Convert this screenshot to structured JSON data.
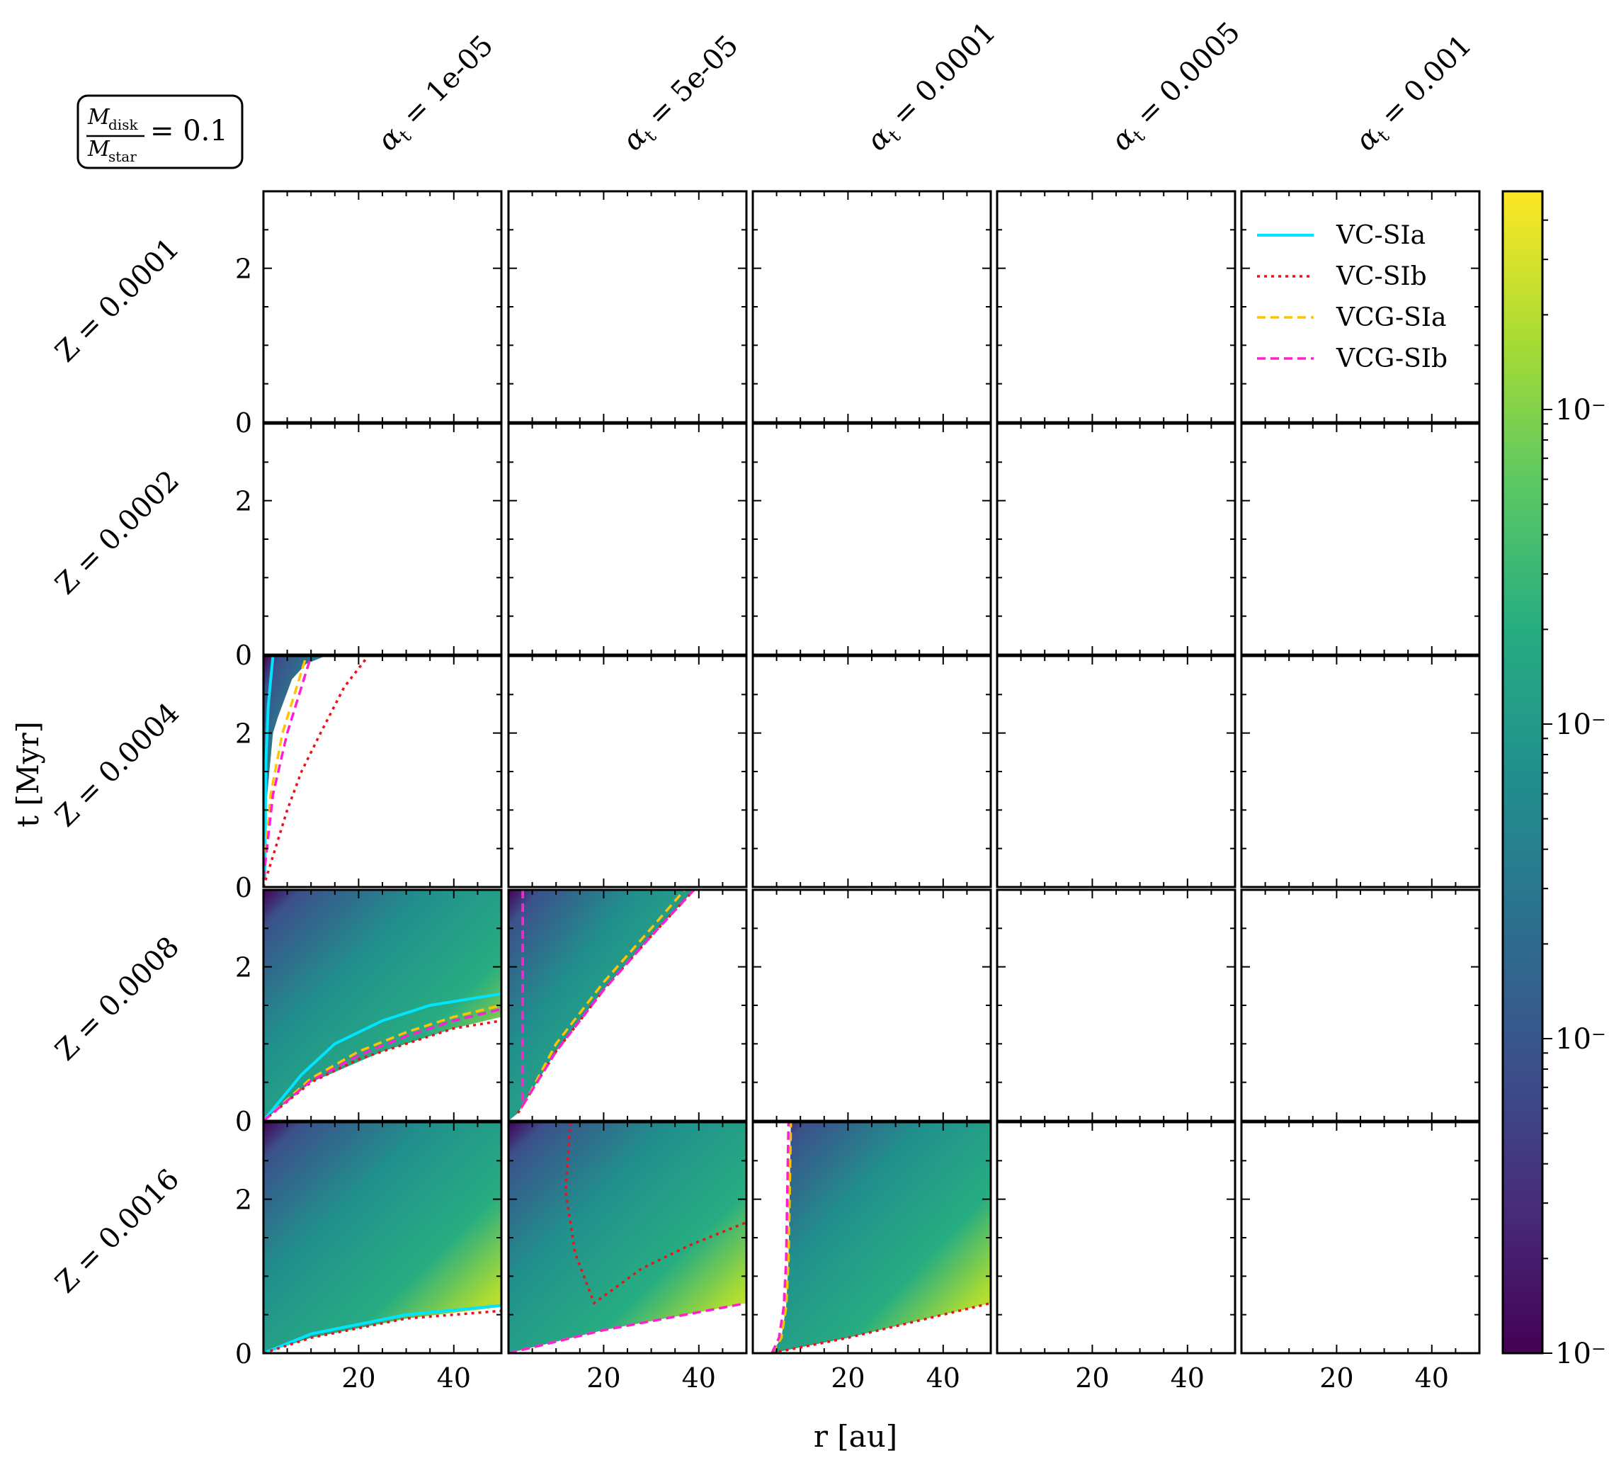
{
  "figure": {
    "title_box": {
      "numerator": "M",
      "numerator_sub": "disk",
      "denominator": "M",
      "denominator_sub": "star",
      "eq_value": "= 0.1"
    },
    "xlabel": "r [au]",
    "ylabel": "t [Myr]",
    "col_prefix": "α",
    "col_prefix_sub": "t",
    "col_values": [
      "= 1e-05",
      "= 5e-05",
      "= 0.0001",
      "= 0.0005",
      "= 0.001"
    ],
    "row_labels": [
      "Z = 0.0001",
      "Z = 0.0002",
      "Z = 0.0004",
      "Z = 0.0008",
      "Z = 0.0016"
    ],
    "xticks": [
      "20",
      "40"
    ],
    "yticks": [
      "0",
      "2"
    ],
    "colorbar_ticks": [
      "10⁻",
      "10⁻",
      "10⁻",
      "10⁻"
    ]
  },
  "legend": [
    {
      "label": "VC-SIa",
      "color": "#00e5ff",
      "style": "solid"
    },
    {
      "label": "VC-SIb",
      "color": "#e8141a",
      "style": "dotted"
    },
    {
      "label": "VCG-SIa",
      "color": "#ffc400",
      "style": "dashed"
    },
    {
      "label": "VCG-SIb",
      "color": "#ff1fd2",
      "style": "dashed"
    }
  ],
  "chart_data": {
    "type": "heatmap",
    "xlim": [
      0,
      50
    ],
    "ylim": [
      0,
      3
    ],
    "colormap": "viridis",
    "colorbar_scale": "log",
    "panels": [
      {
        "row": 2,
        "col": 0,
        "region_upper_x": [
          [
            0,
            0
          ],
          [
            0.5,
            1
          ],
          [
            2,
            2
          ],
          [
            3,
            2.2
          ],
          [
            6,
            2.7
          ],
          [
            9,
            2.9
          ],
          [
            13,
            3
          ],
          [
            22,
            3
          ]
        ],
        "region_left_x": [
          [
            0,
            0
          ],
          [
            0,
            3
          ]
        ],
        "curves": {
          "VC-SIa": [
            [
              0.3,
              0.1
            ],
            [
              0.5,
              1.6
            ],
            [
              1,
              2.35
            ],
            [
              2,
              3
            ]
          ],
          "VC-SIb": [
            [
              0,
              0
            ],
            [
              3,
              0.6
            ],
            [
              5,
              1.0
            ],
            [
              8,
              1.5
            ],
            [
              12,
              2.0
            ],
            [
              17,
              2.6
            ],
            [
              22,
              3
            ]
          ],
          "VCG-SIa": [
            [
              0,
              0.1
            ],
            [
              1.5,
              1.2
            ],
            [
              4,
              2.0
            ],
            [
              7,
              2.6
            ],
            [
              9,
              3
            ]
          ],
          "VCG-SIb": [
            [
              0,
              0.1
            ],
            [
              2,
              1.2
            ],
            [
              5,
              2.0
            ],
            [
              8,
              2.6
            ],
            [
              10,
              3
            ]
          ]
        }
      },
      {
        "row": 3,
        "col": 0,
        "region_lower_x": [
          [
            0,
            0
          ],
          [
            10,
            0.5
          ],
          [
            25,
            0.9
          ],
          [
            40,
            1.2
          ],
          [
            50,
            1.35
          ]
        ],
        "curves": {
          "VC-SIa": [
            [
              0,
              0
            ],
            [
              8,
              0.6
            ],
            [
              15,
              1.0
            ],
            [
              25,
              1.3
            ],
            [
              35,
              1.5
            ],
            [
              50,
              1.65
            ]
          ],
          "VC-SIb": [
            [
              0,
              0
            ],
            [
              10,
              0.5
            ],
            [
              20,
              0.8
            ],
            [
              30,
              1.0
            ],
            [
              40,
              1.2
            ],
            [
              50,
              1.3
            ]
          ],
          "VCG-SIa": [
            [
              0,
              0
            ],
            [
              10,
              0.55
            ],
            [
              20,
              0.9
            ],
            [
              30,
              1.15
            ],
            [
              40,
              1.35
            ],
            [
              50,
              1.5
            ]
          ],
          "VCG-SIb": [
            [
              0,
              0
            ],
            [
              10,
              0.52
            ],
            [
              20,
              0.85
            ],
            [
              30,
              1.1
            ],
            [
              40,
              1.3
            ],
            [
              50,
              1.45
            ]
          ]
        }
      },
      {
        "row": 3,
        "col": 1,
        "region_lower_x": [
          [
            2,
            0.1
          ],
          [
            4,
            0.3
          ],
          [
            10,
            0.9
          ],
          [
            20,
            1.7
          ],
          [
            30,
            2.4
          ],
          [
            39,
            3
          ]
        ],
        "curves": {
          "VC-SIb": [
            [
              2,
              0.1
            ],
            [
              4,
              0.3
            ],
            [
              10,
              0.9
            ],
            [
              20,
              1.7
            ],
            [
              30,
              2.4
            ],
            [
              39,
              3
            ]
          ],
          "VCG-SIa": [
            [
              3,
              3
            ],
            [
              3,
              0.2
            ],
            [
              4,
              0.3
            ],
            [
              10,
              1.0
            ],
            [
              20,
              1.8
            ],
            [
              30,
              2.5
            ],
            [
              37,
              3
            ]
          ],
          "VCG-SIb": [
            [
              3,
              3
            ],
            [
              3,
              0.2
            ],
            [
              4,
              0.3
            ],
            [
              10,
              0.9
            ],
            [
              20,
              1.7
            ],
            [
              30,
              2.4
            ],
            [
              39,
              3
            ]
          ]
        }
      },
      {
        "row": 4,
        "col": 0,
        "region_lower_x": [
          [
            0,
            0
          ],
          [
            10,
            0.2
          ],
          [
            30,
            0.45
          ],
          [
            50,
            0.6
          ]
        ],
        "curves": {
          "VC-SIa": [
            [
              0,
              0
            ],
            [
              10,
              0.25
            ],
            [
              30,
              0.5
            ],
            [
              50,
              0.62
            ]
          ],
          "VC-SIb": [
            [
              0,
              0
            ],
            [
              10,
              0.2
            ],
            [
              30,
              0.45
            ],
            [
              50,
              0.55
            ]
          ]
        }
      },
      {
        "row": 4,
        "col": 1,
        "region_lower_x": [
          [
            0,
            0
          ],
          [
            20,
            0.3
          ],
          [
            50,
            0.65
          ]
        ],
        "curves": {
          "VC-SIb": [
            [
              13,
              3
            ],
            [
              12,
              2.1
            ],
            [
              14,
              1.3
            ],
            [
              18,
              0.65
            ],
            [
              28,
              1.1
            ],
            [
              38,
              1.4
            ],
            [
              50,
              1.7
            ]
          ],
          "VCG-SIa": [
            [
              0,
              0
            ],
            [
              20,
              0.3
            ],
            [
              50,
              0.65
            ]
          ],
          "VCG-SIb": [
            [
              0,
              0
            ],
            [
              20,
              0.3
            ],
            [
              50,
              0.65
            ]
          ]
        }
      },
      {
        "row": 4,
        "col": 2,
        "region_left_x": [
          [
            4,
            0
          ],
          [
            6,
            0.2
          ],
          [
            7,
            0.6
          ],
          [
            7.5,
            1.2
          ],
          [
            8,
            3
          ]
        ],
        "region_lower_x": [
          [
            4,
            0
          ],
          [
            20,
            0.2
          ],
          [
            50,
            0.65
          ]
        ],
        "curves": {
          "VCG-SIa": [
            [
              4,
              0
            ],
            [
              6,
              0.2
            ],
            [
              7,
              0.6
            ],
            [
              7.5,
              1.2
            ],
            [
              8,
              3
            ]
          ],
          "VCG-SIb": [
            [
              4,
              0
            ],
            [
              5.5,
              0.2
            ],
            [
              6.5,
              0.6
            ],
            [
              7,
              1.2
            ],
            [
              7.5,
              3
            ]
          ],
          "VC-SIb": [
            [
              4,
              0
            ],
            [
              20,
              0.2
            ],
            [
              50,
              0.65
            ]
          ]
        }
      }
    ]
  }
}
